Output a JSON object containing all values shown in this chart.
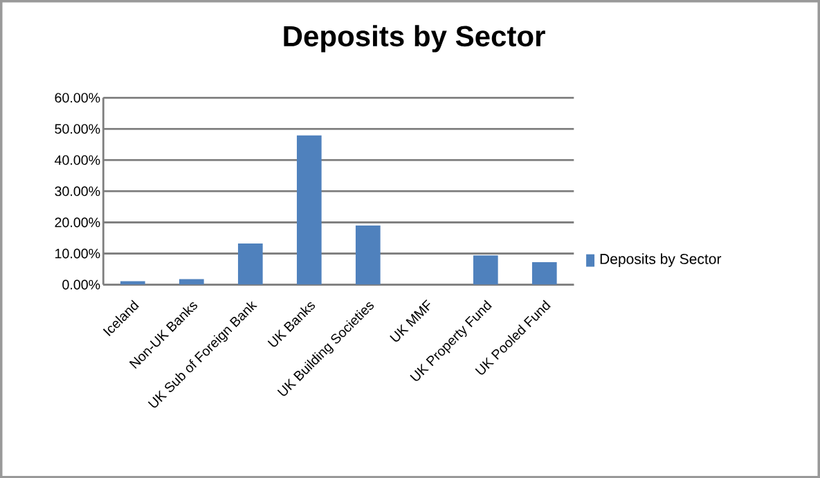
{
  "chart_data": {
    "type": "bar",
    "title": "Deposits by Sector",
    "categories": [
      "Iceland",
      "Non-UK Banks",
      "UK Sub of Foreign Bank",
      "UK Banks",
      "UK Building Societies",
      "UK MMF",
      "UK Property Fund",
      "UK Pooled Fund"
    ],
    "series": [
      {
        "name": "Deposits by Sector",
        "color": "#4f81bd",
        "values": [
          1.1,
          1.8,
          13.2,
          47.9,
          19.0,
          0,
          9.4,
          7.2
        ]
      }
    ],
    "ylim": [
      0,
      60
    ],
    "yticks": [
      {
        "value": 0,
        "label": "0.00%"
      },
      {
        "value": 10,
        "label": "10.00%"
      },
      {
        "value": 20,
        "label": "20.00%"
      },
      {
        "value": 30,
        "label": "30.00%"
      },
      {
        "value": 40,
        "label": "40.00%"
      },
      {
        "value": 50,
        "label": "50.00%"
      },
      {
        "value": 60,
        "label": "60.00%"
      }
    ],
    "grid": "y",
    "legend": "right"
  }
}
